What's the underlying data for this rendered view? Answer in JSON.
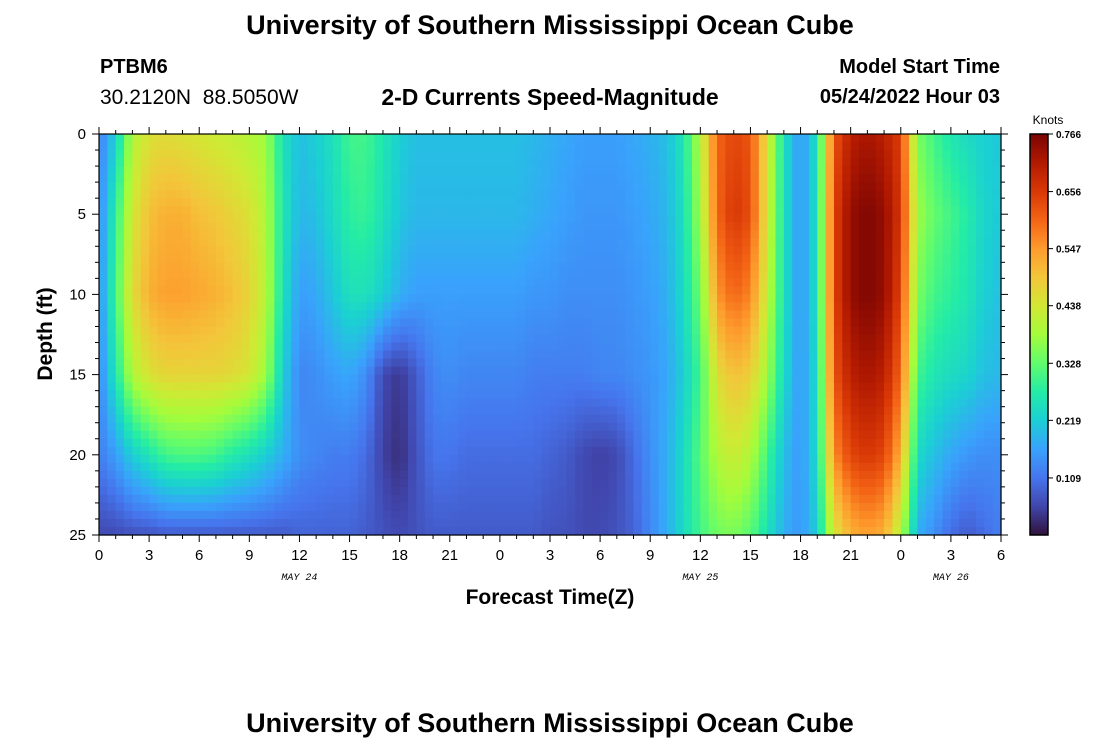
{
  "header": {
    "title": "University of Southern Mississippi Ocean Cube",
    "station": "PTBM6",
    "coords": "30.2120N  88.5050W",
    "subtitle": "2-D Currents Speed-Magnitude",
    "model_start_label": "Model Start Time",
    "model_start_value": "05/24/2022 Hour 03"
  },
  "footer": {
    "title": "University of Southern Mississippi Ocean Cube"
  },
  "colors": {
    "scale": [
      "#30123b",
      "#4145ab",
      "#4675ed",
      "#39a2fc",
      "#1bcfd4",
      "#24eca6",
      "#61fc6c",
      "#a4fc3b",
      "#d1e834",
      "#f3c63a",
      "#fe9b2d",
      "#f36315",
      "#d93806",
      "#b11901",
      "#7a0403"
    ]
  },
  "chart_data": {
    "type": "heatmap",
    "xlabel": "Forecast Time(Z)",
    "ylabel": "Depth (ft)",
    "x_range_hours": [
      0,
      54
    ],
    "x_tick_labels": [
      "0",
      "3",
      "6",
      "9",
      "12",
      "15",
      "18",
      "21",
      "0",
      "3",
      "6",
      "9",
      "12",
      "15",
      "18",
      "21",
      "0",
      "3",
      "6"
    ],
    "date_labels": [
      "MAY 24",
      "MAY 25",
      "MAY 26"
    ],
    "y_range": [
      0,
      25
    ],
    "y_ticks": [
      0,
      5,
      10,
      15,
      20,
      25
    ],
    "colorbar": {
      "unit": "Knots",
      "ticks": [
        "0.766",
        "0.656",
        "0.547",
        "0.438",
        "0.328",
        "0.219",
        "0.109"
      ],
      "range": [
        0,
        0.766
      ]
    },
    "depths_ft": [
      0,
      5,
      10,
      15,
      20,
      25
    ],
    "hours": [
      0,
      1,
      2,
      3,
      4,
      5,
      6,
      7,
      8,
      9,
      10,
      11,
      12,
      13,
      14,
      15,
      16,
      17,
      18,
      19,
      20,
      21,
      22,
      23,
      24,
      25,
      26,
      27,
      28,
      29,
      30,
      31,
      32,
      33,
      34,
      35,
      36,
      37,
      38,
      39,
      40,
      41,
      42,
      43,
      44,
      45,
      46,
      47,
      48,
      49,
      50,
      51,
      52,
      53,
      54
    ],
    "speed_knots": [
      [
        0.12,
        0.22,
        0.4,
        0.45,
        0.46,
        0.45,
        0.44,
        0.43,
        0.42,
        0.4,
        0.38,
        0.25,
        0.2,
        0.22,
        0.25,
        0.3,
        0.3,
        0.26,
        0.22,
        0.2,
        0.2,
        0.2,
        0.2,
        0.2,
        0.2,
        0.2,
        0.19,
        0.18,
        0.17,
        0.16,
        0.16,
        0.16,
        0.17,
        0.18,
        0.2,
        0.26,
        0.4,
        0.6,
        0.64,
        0.62,
        0.45,
        0.25,
        0.15,
        0.25,
        0.62,
        0.7,
        0.72,
        0.7,
        0.65,
        0.35,
        0.3,
        0.26,
        0.24,
        0.22,
        0.21
      ],
      [
        0.13,
        0.28,
        0.44,
        0.5,
        0.52,
        0.52,
        0.5,
        0.49,
        0.47,
        0.45,
        0.4,
        0.26,
        0.19,
        0.2,
        0.24,
        0.28,
        0.29,
        0.25,
        0.21,
        0.19,
        0.19,
        0.19,
        0.19,
        0.19,
        0.19,
        0.19,
        0.18,
        0.17,
        0.16,
        0.15,
        0.15,
        0.15,
        0.16,
        0.17,
        0.19,
        0.25,
        0.38,
        0.6,
        0.66,
        0.63,
        0.44,
        0.25,
        0.15,
        0.25,
        0.64,
        0.74,
        0.76,
        0.74,
        0.66,
        0.38,
        0.33,
        0.3,
        0.27,
        0.23,
        0.21
      ],
      [
        0.14,
        0.3,
        0.46,
        0.52,
        0.54,
        0.54,
        0.53,
        0.52,
        0.5,
        0.47,
        0.41,
        0.25,
        0.16,
        0.17,
        0.21,
        0.25,
        0.25,
        0.22,
        0.18,
        0.16,
        0.16,
        0.16,
        0.16,
        0.16,
        0.16,
        0.16,
        0.15,
        0.15,
        0.14,
        0.14,
        0.14,
        0.14,
        0.15,
        0.16,
        0.18,
        0.24,
        0.34,
        0.55,
        0.6,
        0.57,
        0.42,
        0.25,
        0.15,
        0.25,
        0.64,
        0.74,
        0.76,
        0.74,
        0.64,
        0.35,
        0.3,
        0.28,
        0.26,
        0.22,
        0.2
      ],
      [
        0.13,
        0.26,
        0.4,
        0.45,
        0.47,
        0.47,
        0.47,
        0.47,
        0.46,
        0.44,
        0.38,
        0.22,
        0.13,
        0.14,
        0.16,
        0.17,
        0.14,
        0.06,
        0.04,
        0.08,
        0.13,
        0.14,
        0.13,
        0.13,
        0.13,
        0.13,
        0.12,
        0.12,
        0.12,
        0.12,
        0.13,
        0.13,
        0.14,
        0.15,
        0.17,
        0.22,
        0.3,
        0.46,
        0.5,
        0.48,
        0.38,
        0.24,
        0.15,
        0.24,
        0.62,
        0.7,
        0.72,
        0.7,
        0.6,
        0.3,
        0.26,
        0.24,
        0.23,
        0.2,
        0.19
      ],
      [
        0.12,
        0.16,
        0.22,
        0.26,
        0.3,
        0.31,
        0.31,
        0.3,
        0.27,
        0.25,
        0.22,
        0.18,
        0.14,
        0.13,
        0.12,
        0.12,
        0.1,
        0.05,
        0.03,
        0.07,
        0.11,
        0.11,
        0.1,
        0.1,
        0.1,
        0.1,
        0.1,
        0.09,
        0.08,
        0.06,
        0.05,
        0.06,
        0.1,
        0.14,
        0.18,
        0.24,
        0.32,
        0.4,
        0.43,
        0.4,
        0.3,
        0.2,
        0.15,
        0.24,
        0.56,
        0.64,
        0.66,
        0.64,
        0.52,
        0.24,
        0.2,
        0.17,
        0.15,
        0.14,
        0.14
      ],
      [
        0.06,
        0.06,
        0.07,
        0.07,
        0.08,
        0.08,
        0.08,
        0.08,
        0.08,
        0.08,
        0.08,
        0.08,
        0.09,
        0.09,
        0.09,
        0.09,
        0.08,
        0.07,
        0.06,
        0.07,
        0.08,
        0.08,
        0.08,
        0.08,
        0.08,
        0.08,
        0.08,
        0.07,
        0.07,
        0.06,
        0.06,
        0.07,
        0.09,
        0.13,
        0.18,
        0.24,
        0.3,
        0.34,
        0.35,
        0.32,
        0.25,
        0.18,
        0.15,
        0.22,
        0.44,
        0.52,
        0.54,
        0.52,
        0.4,
        0.18,
        0.14,
        0.1,
        0.08,
        0.1,
        0.12
      ]
    ]
  }
}
